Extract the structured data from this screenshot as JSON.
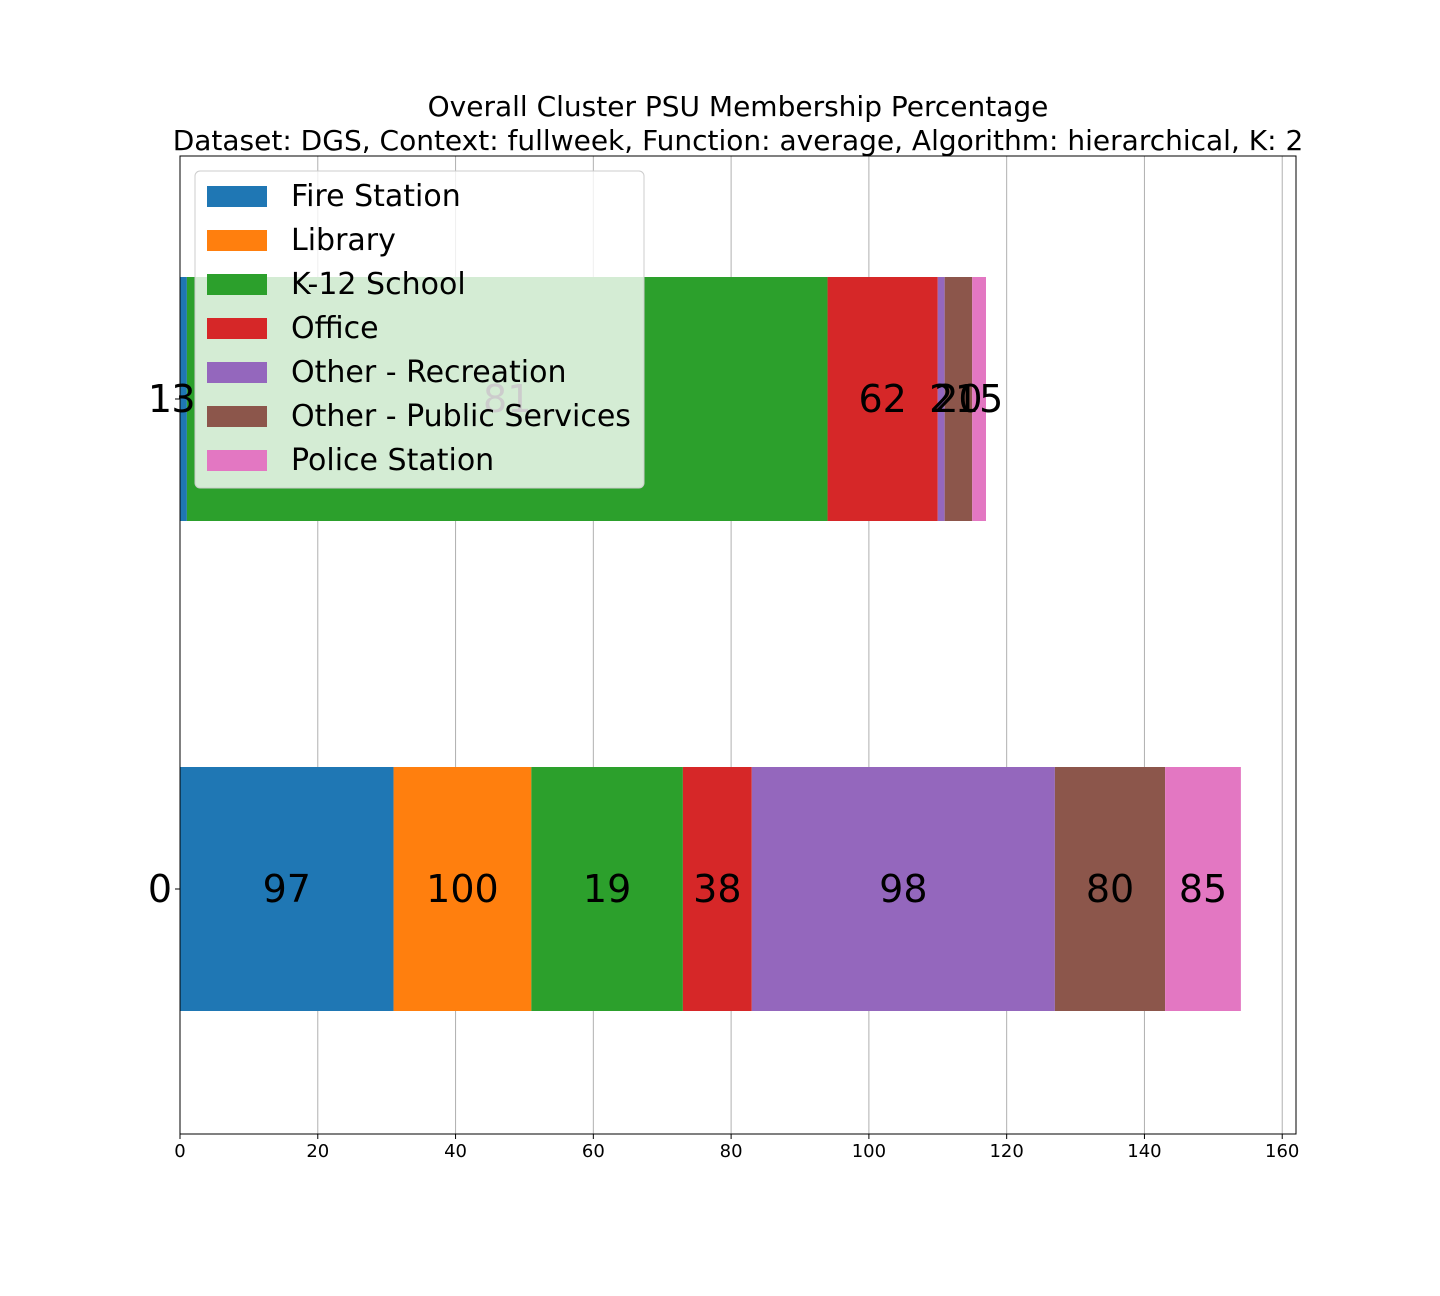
{
  "chart_data": {
    "type": "bar",
    "orientation": "horizontal",
    "stacked": true,
    "title": "Overall Cluster  PSU Membership Percentage",
    "subtitle": "Dataset: DGS, Context: fullweek, Function: average, Algorithm: hierarchical, K: 2",
    "xlabel": "",
    "ylabel": "",
    "categories": [
      "0",
      "1"
    ],
    "xlim": [
      0,
      162
    ],
    "xticks": [
      0,
      20,
      40,
      60,
      80,
      100,
      120,
      140,
      160
    ],
    "grid": "vertical",
    "legend_position": "upper-left",
    "series": [
      {
        "name": "Fire Station",
        "color": "#1f77b4",
        "values": [
          31,
          1
        ],
        "labels": [
          "97",
          "3"
        ]
      },
      {
        "name": "Library",
        "color": "#ff7f0e",
        "values": [
          20,
          0
        ],
        "labels": [
          "100",
          ""
        ]
      },
      {
        "name": "K-12 School",
        "color": "#2ca02c",
        "values": [
          22,
          93
        ],
        "labels": [
          "19",
          "81"
        ]
      },
      {
        "name": "Office",
        "color": "#d62728",
        "values": [
          10,
          16
        ],
        "labels": [
          "38",
          "62"
        ]
      },
      {
        "name": "Other - Recreation",
        "color": "#9467bd",
        "values": [
          44,
          1
        ],
        "labels": [
          "98",
          "2"
        ]
      },
      {
        "name": "Other - Public Services",
        "color": "#8c564b",
        "values": [
          16,
          4
        ],
        "labels": [
          "80",
          "20"
        ]
      },
      {
        "name": "Police Station",
        "color": "#e377c2",
        "values": [
          11,
          2
        ],
        "labels": [
          "85",
          "15"
        ]
      }
    ]
  }
}
